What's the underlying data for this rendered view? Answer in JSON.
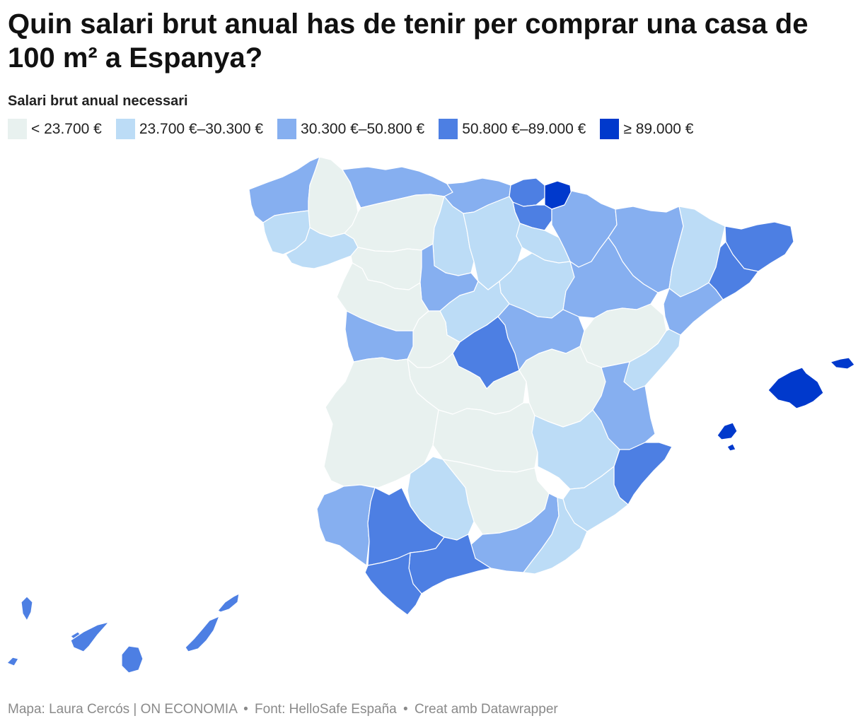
{
  "title": "Quin salari brut anual has de tenir per comprar una casa de 100 m² a Espanya?",
  "legend": {
    "title": "Salari brut anual necessari",
    "items": [
      {
        "label": "< 23.700 €",
        "color": "#e8f1ef"
      },
      {
        "label": "23.700 €–30.300 €",
        "color": "#bcdcf6"
      },
      {
        "label": "30.300 €–50.800 €",
        "color": "#86aff0"
      },
      {
        "label": "50.800 €–89.000 €",
        "color": "#4d7fe3"
      },
      {
        "label": "≥ 89.000 €",
        "color": "#0039cc"
      }
    ]
  },
  "footer": {
    "map_credit": "Mapa: Laura Cercós | ON ECONOMIA",
    "source": "Font: HelloSafe España",
    "tool": "Creat amb Datawrapper",
    "separator": "•"
  }
}
